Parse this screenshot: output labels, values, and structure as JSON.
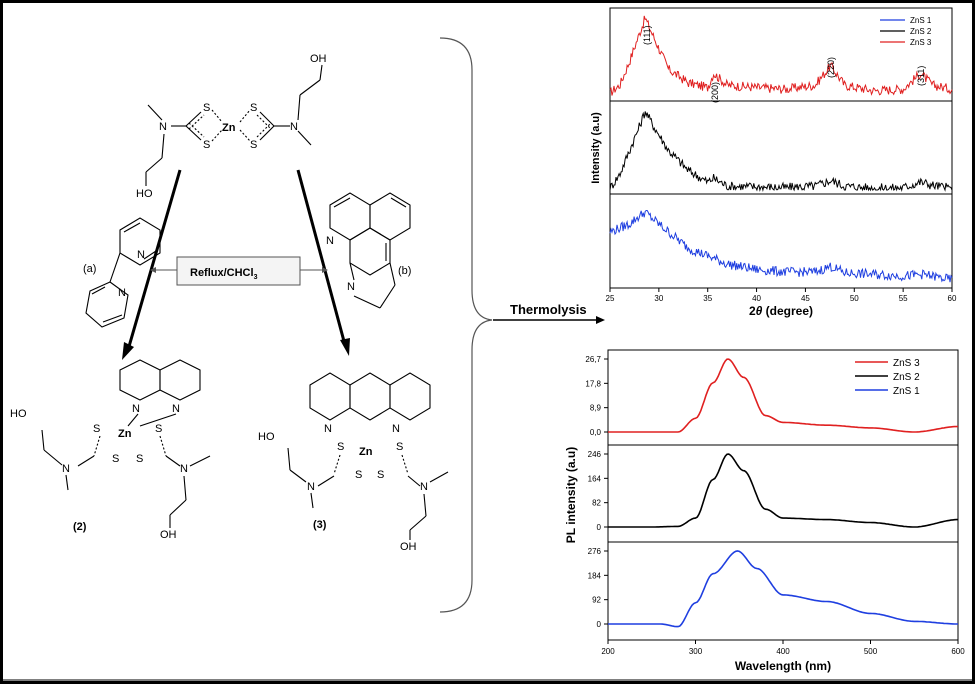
{
  "scheme": {
    "reaction_condition": "Reflux/CHCl",
    "reaction_condition_sub": "3",
    "ligand_a_label": "(a)",
    "ligand_b_label": "(b)",
    "product2_label": "(2)",
    "product3_label": "(3)",
    "thermolysis_label": "Thermolysis",
    "atoms": {
      "zn": "Zn",
      "s": "S",
      "n": "N",
      "oh": "OH",
      "ho": "HO"
    }
  },
  "xrd_chart": {
    "xlabel": "2θ (degree)",
    "xlabel_theta": "2",
    "xlabel_rest": " (degree)",
    "ylabel": "Intensity (a.u)",
    "x_ticks": [
      "25",
      "30",
      "35",
      "40",
      "45",
      "50",
      "55",
      "60"
    ],
    "legend": [
      {
        "name": "ZnS 1",
        "color": "#1f3fe0"
      },
      {
        "name": "ZnS 2",
        "color": "#000000"
      },
      {
        "name": "ZnS 3",
        "color": "#e02020"
      }
    ],
    "peak_labels": [
      "(111)",
      "(200)",
      "(220)",
      "(311)"
    ]
  },
  "pl_chart": {
    "xlabel": "Wavelength (nm)",
    "ylabel": "PL intensity (a.u)",
    "x_ticks": [
      "200",
      "300",
      "400",
      "500",
      "600"
    ],
    "legend": [
      {
        "name": "ZnS 3",
        "color": "#e02020"
      },
      {
        "name": "ZnS 2",
        "color": "#000000"
      },
      {
        "name": "ZnS 1",
        "color": "#1f3fe0"
      }
    ],
    "panel_ticks": {
      "zns3": [
        "26,7",
        "17,8",
        "8,9",
        "0,0"
      ],
      "zns2": [
        "246",
        "164",
        "82",
        "0"
      ],
      "zns1": [
        "276",
        "184",
        "92",
        "0"
      ]
    }
  },
  "chart_data": [
    {
      "type": "line",
      "xlabel": "2θ (degree)",
      "ylabel": "Intensity (a.u)",
      "xlim": [
        25,
        60
      ],
      "series": [
        {
          "name": "ZnS 3",
          "color": "#e02020",
          "x": [
            25,
            26,
            27,
            28,
            28.6,
            29.5,
            31,
            33,
            35,
            35.6,
            37,
            40,
            43,
            46,
            47.6,
            49,
            52,
            55,
            56.8,
            58,
            60
          ],
          "y": [
            0.05,
            0.15,
            0.45,
            0.8,
            1.0,
            0.75,
            0.35,
            0.18,
            0.12,
            0.3,
            0.15,
            0.12,
            0.1,
            0.15,
            0.4,
            0.15,
            0.08,
            0.1,
            0.3,
            0.15,
            0.1
          ]
        },
        {
          "name": "ZnS 2",
          "color": "#000000",
          "x": [
            25,
            26,
            27,
            28,
            28.6,
            29.5,
            31,
            33,
            35,
            35.6,
            37,
            40,
            43,
            46,
            47.6,
            49,
            52,
            55,
            56.8,
            58,
            60
          ],
          "y": [
            0.02,
            0.2,
            0.5,
            0.8,
            1.0,
            0.8,
            0.5,
            0.25,
            0.1,
            0.15,
            0.05,
            0.04,
            0.03,
            0.05,
            0.12,
            0.05,
            0.02,
            0.03,
            0.1,
            0.06,
            0.02
          ]
        },
        {
          "name": "ZnS 1",
          "color": "#1f3fe0",
          "x": [
            25,
            26,
            27,
            28,
            28.6,
            29.5,
            31,
            33,
            35,
            37,
            40,
            43,
            46,
            47.6,
            49,
            52,
            55,
            57,
            60
          ],
          "y": [
            0.65,
            0.7,
            0.75,
            0.85,
            0.9,
            0.8,
            0.65,
            0.45,
            0.35,
            0.25,
            0.18,
            0.15,
            0.15,
            0.22,
            0.14,
            0.12,
            0.1,
            0.12,
            0.05
          ]
        }
      ]
    },
    {
      "type": "line",
      "xlabel": "Wavelength (nm)",
      "ylabel": "PL intensity (a.u)",
      "xlim": [
        200,
        600
      ],
      "series": [
        {
          "name": "ZnS 3",
          "color": "#e02020",
          "x": [
            200,
            250,
            280,
            300,
            320,
            337,
            355,
            380,
            400,
            450,
            500,
            550,
            600
          ],
          "y": [
            0,
            0,
            0,
            5,
            18,
            26.7,
            20,
            6,
            3.5,
            2.5,
            1.5,
            0,
            2
          ]
        },
        {
          "name": "ZnS 2",
          "color": "#000000",
          "x": [
            200,
            250,
            280,
            300,
            320,
            337,
            355,
            380,
            400,
            450,
            500,
            550,
            600
          ],
          "y": [
            0,
            0,
            2,
            30,
            160,
            246,
            190,
            60,
            30,
            25,
            15,
            0,
            25
          ]
        },
        {
          "name": "ZnS 1",
          "color": "#1f3fe0",
          "x": [
            200,
            260,
            280,
            300,
            320,
            348,
            370,
            400,
            450,
            500,
            550,
            600
          ],
          "y": [
            0,
            0,
            -10,
            80,
            190,
            276,
            210,
            110,
            85,
            40,
            10,
            0
          ]
        }
      ]
    }
  ]
}
